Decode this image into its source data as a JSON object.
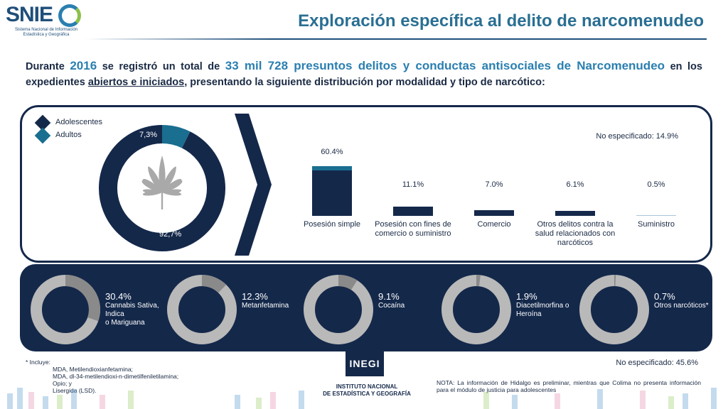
{
  "logo": {
    "text": "SNIEG",
    "subtitle": "Sistema Nacional de Información Estadística y Geográfica"
  },
  "header": {
    "title": "Exploración específica al delito de narcomenudeo"
  },
  "intro": {
    "p1": "Durante ",
    "year": "2016",
    "p2": " se registró un total de ",
    "total": "33 mil 728 presuntos delitos y conductas antisociales de Narcomenudeo",
    "p3": " en los expedientes ",
    "underlined": "abiertos e iniciados",
    "p4": ", presentando la siguiente distribución por modalidad y tipo de narcótico:"
  },
  "colors": {
    "navy": "#14284a",
    "teal": "#1a6e90",
    "gray": "#b9b9b9",
    "darkgray": "#8a8a8a",
    "leaf": "#a9a9a9",
    "white": "#ffffff"
  },
  "chart_data": [
    {
      "type": "pie",
      "categories": [
        "Adolescentes",
        "Adultos"
      ],
      "values": [
        7.3,
        92.7
      ],
      "labels": [
        "7,3%",
        "92,7%"
      ],
      "legend": "top-left",
      "icon": "cannabis-leaf-icon"
    },
    {
      "type": "bar",
      "stacked": true,
      "categories": [
        "Posesión simple",
        "Posesión  con fines de comercio o suministro",
        "Comercio",
        "Otros delitos contra la salud relacionados con narcóticos",
        "Suministro"
      ],
      "values": [
        60.4,
        11.1,
        7.0,
        6.1,
        0.5
      ],
      "value_labels": [
        "60.4%",
        "11.1%",
        "7.0%",
        "6.1%",
        "0.5%"
      ],
      "series": [
        {
          "name": "Adolescentes",
          "values": [
            5.0,
            0.3,
            0.2,
            0.1,
            0.0
          ]
        },
        {
          "name": "Adultos",
          "values": [
            55.4,
            10.8,
            6.8,
            6.0,
            0.5
          ]
        }
      ],
      "annotation": "No especificado: 14.9%"
    },
    {
      "type": "pie",
      "donuts": [
        {
          "value": 30.4,
          "pct": "30.4%",
          "label_lines": [
            "Cannabis Sativa,",
            "Indica",
            "o Mariguana"
          ]
        },
        {
          "value": 12.3,
          "pct": "12.3%",
          "label_lines": [
            "Metanfetamina"
          ]
        },
        {
          "value": 9.1,
          "pct": "9.1%",
          "label_lines": [
            "Cocaína"
          ]
        },
        {
          "value": 1.9,
          "pct": "1.9%",
          "label_lines": [
            "Diacetilmorfina o",
            "Heroína"
          ]
        },
        {
          "value": 0.7,
          "pct": "0.7%",
          "label_lines": [
            "Otros narcóticos*"
          ]
        }
      ],
      "annotation": "No especificado: 45.6%"
    }
  ],
  "footnote": {
    "title": "* Incluye:",
    "lines": [
      "MDA, Metilendioxianfetamina;",
      "MDA, dl-34-metilendioxi-n-dimetilfeniletilamina;",
      "Opio; y",
      "Lisergida (LSD)."
    ]
  },
  "inegi": {
    "logo": "INEGI",
    "line1": "INSTITUTO NACIONAL",
    "line2": "DE ESTADÍSTICA Y GEOGRAFÍA"
  },
  "note": "NOTA: La información de Hidalgo es preliminar, mientras que Colima no presenta información para el módulo de justicia para adolescentes"
}
